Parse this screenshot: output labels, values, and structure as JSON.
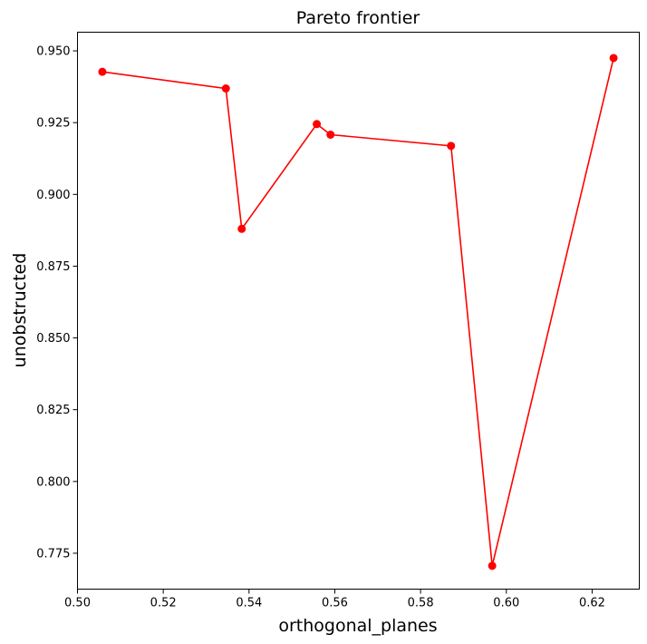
{
  "chart_data": {
    "type": "line",
    "title": "Pareto frontier",
    "xlabel": "orthogonal_planes",
    "ylabel": "unobstructed",
    "xlim": [
      0.5,
      0.631
    ],
    "ylim": [
      0.7625,
      0.9565
    ],
    "grid": false,
    "xticks": [
      0.5,
      0.52,
      0.54,
      0.56,
      0.58,
      0.6,
      0.62
    ],
    "xtick_labels": [
      "0.50",
      "0.52",
      "0.54",
      "0.56",
      "0.58",
      "0.60",
      "0.62"
    ],
    "yticks": [
      0.775,
      0.8,
      0.825,
      0.85,
      0.875,
      0.9,
      0.925,
      0.95
    ],
    "ytick_labels": [
      "0.775",
      "0.800",
      "0.825",
      "0.850",
      "0.875",
      "0.900",
      "0.925",
      "0.950"
    ],
    "series": [
      {
        "color": "#ff0000",
        "marker": "circle",
        "x": [
          0.5058,
          0.5346,
          0.5383,
          0.5558,
          0.559,
          0.5871,
          0.5967,
          0.625
        ],
        "y": [
          0.9427,
          0.9369,
          0.888,
          0.9245,
          0.9208,
          0.9169,
          0.7706,
          0.9475
        ]
      }
    ]
  }
}
